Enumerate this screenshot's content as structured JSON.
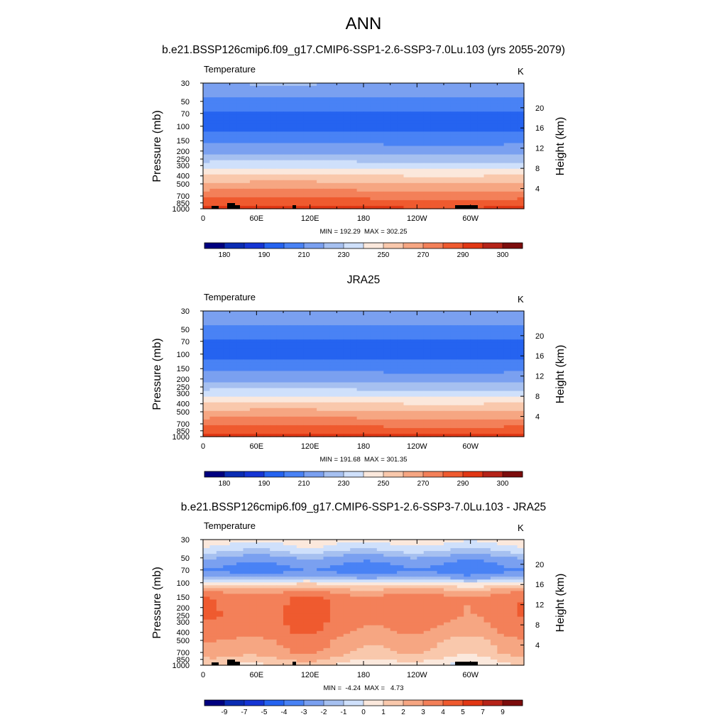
{
  "main_title": "ANN",
  "colors": {
    "full_field": [
      "#000080",
      "#0a2cb3",
      "#1535d4",
      "#2563f0",
      "#4982f5",
      "#7aa0f0",
      "#a6c0f0",
      "#cfe0fb",
      "#fbe8dc",
      "#f9c8ac",
      "#f6a682",
      "#f38059",
      "#ef5a2f",
      "#e13714",
      "#b52318",
      "#7c0c0c"
    ],
    "anomaly": [
      "#000080",
      "#0a2cb3",
      "#1535d4",
      "#2563f0",
      "#4982f5",
      "#7aa0f0",
      "#a6c0f0",
      "#cfe0fb",
      "#fbe8dc",
      "#f9c8ac",
      "#f6a682",
      "#f38059",
      "#ef5a2f",
      "#e13714",
      "#b52318",
      "#7c0c0c"
    ],
    "topography": "#000000"
  },
  "panels": [
    {
      "title": "b.e21.BSSP126cmip6.f09_g17.CMIP6-SSP1-2.6-SSP3-7.0Lu.103 (yrs 2055-2079)",
      "left_label": "Temperature",
      "right_label": "K",
      "minmax": "MIN = 192.29  MAX = 302.25",
      "colorbar_labels": [
        "180",
        "190",
        "210",
        "230",
        "250",
        "270",
        "290",
        "300"
      ]
    },
    {
      "title": "JRA25",
      "left_label": "Temperature",
      "right_label": "K",
      "minmax": "MIN = 191.68  MAX = 301.35",
      "colorbar_labels": [
        "180",
        "190",
        "210",
        "230",
        "250",
        "270",
        "290",
        "300"
      ]
    },
    {
      "title": "b.e21.BSSP126cmip6.f09_g17.CMIP6-SSP1-2.6-SSP3-7.0Lu.103 - JRA25",
      "left_label": "Temperature",
      "right_label": "K",
      "minmax": "MIN =  -4.24  MAX =   4.73",
      "colorbar_labels": [
        "-9",
        "-7",
        "-5",
        "-4",
        "-3",
        "-2",
        "-1",
        "0",
        "1",
        "2",
        "3",
        "4",
        "5",
        "7",
        "9"
      ]
    }
  ],
  "chart_data": [
    {
      "type": "heatmap",
      "title": "b.e21.BSSP126cmip6.f09_g17.CMIP6-SSP1-2.6-SSP3-7.0Lu.103 (yrs 2055-2079)",
      "variable": "Temperature",
      "units": "K",
      "xlabel": "",
      "ylabel": "Pressure (mb)",
      "ylabel_right": "Height (km)",
      "x_ticks": [
        "0",
        "60E",
        "120E",
        "180",
        "120W",
        "60W"
      ],
      "y_ticks": [
        "30",
        "50",
        "70",
        "100",
        "150",
        "200",
        "250",
        "300",
        "400",
        "500",
        "700",
        "850",
        "1000"
      ],
      "y_ticks_right": [
        "20",
        "16",
        "12",
        "8",
        "4"
      ],
      "y_scale": "log",
      "ylim": [
        1000,
        30
      ],
      "min": 192.29,
      "max": 302.25,
      "contour_levels": [
        180,
        185,
        190,
        200,
        210,
        220,
        230,
        240,
        250,
        260,
        270,
        280,
        290,
        295,
        300
      ],
      "profile": [
        {
          "p": 30,
          "T": 221
        },
        {
          "p": 50,
          "T": 207
        },
        {
          "p": 70,
          "T": 198
        },
        {
          "p": 100,
          "T": 196
        },
        {
          "p": 150,
          "T": 207
        },
        {
          "p": 200,
          "T": 216
        },
        {
          "p": 250,
          "T": 226
        },
        {
          "p": 300,
          "T": 236
        },
        {
          "p": 400,
          "T": 251
        },
        {
          "p": 500,
          "T": 262
        },
        {
          "p": 700,
          "T": 277
        },
        {
          "p": 850,
          "T": 285
        },
        {
          "p": 1000,
          "T": 293
        }
      ]
    },
    {
      "type": "heatmap",
      "title": "JRA25",
      "variable": "Temperature",
      "units": "K",
      "xlabel": "",
      "ylabel": "Pressure (mb)",
      "ylabel_right": "Height (km)",
      "x_ticks": [
        "0",
        "60E",
        "120E",
        "180",
        "120W",
        "60W"
      ],
      "y_ticks": [
        "30",
        "50",
        "70",
        "100",
        "150",
        "200",
        "250",
        "300",
        "400",
        "500",
        "700",
        "850",
        "1000"
      ],
      "y_ticks_right": [
        "20",
        "16",
        "12",
        "8",
        "4"
      ],
      "y_scale": "log",
      "ylim": [
        1000,
        30
      ],
      "min": 191.68,
      "max": 301.35,
      "contour_levels": [
        180,
        185,
        190,
        200,
        210,
        220,
        230,
        240,
        250,
        260,
        270,
        280,
        290,
        295,
        300
      ],
      "profile": [
        {
          "p": 30,
          "T": 220
        },
        {
          "p": 50,
          "T": 207
        },
        {
          "p": 70,
          "T": 198
        },
        {
          "p": 100,
          "T": 196
        },
        {
          "p": 150,
          "T": 207
        },
        {
          "p": 200,
          "T": 216
        },
        {
          "p": 250,
          "T": 226
        },
        {
          "p": 300,
          "T": 236
        },
        {
          "p": 400,
          "T": 251
        },
        {
          "p": 500,
          "T": 262
        },
        {
          "p": 700,
          "T": 277
        },
        {
          "p": 850,
          "T": 286
        },
        {
          "p": 1000,
          "T": 294
        }
      ]
    },
    {
      "type": "heatmap",
      "title": "b.e21.BSSP126cmip6.f09_g17.CMIP6-SSP1-2.6-SSP3-7.0Lu.103 - JRA25",
      "variable": "Temperature",
      "units": "K",
      "xlabel": "",
      "ylabel": "Pressure (mb)",
      "ylabel_right": "Height (km)",
      "x_ticks": [
        "0",
        "60E",
        "120E",
        "180",
        "120W",
        "60W"
      ],
      "y_ticks": [
        "30",
        "50",
        "70",
        "100",
        "150",
        "200",
        "250",
        "300",
        "400",
        "500",
        "700",
        "850",
        "1000"
      ],
      "y_ticks_right": [
        "20",
        "16",
        "12",
        "8",
        "4"
      ],
      "y_scale": "log",
      "ylim": [
        1000,
        30
      ],
      "min": -4.24,
      "max": 4.73,
      "contour_levels": [
        -9,
        -7,
        -5,
        -4,
        -3,
        -2,
        -1,
        0,
        1,
        2,
        3,
        4,
        5,
        7,
        9
      ],
      "profile": [
        {
          "p": 30,
          "T": 0.6
        },
        {
          "p": 40,
          "T": -0.8
        },
        {
          "p": 50,
          "T": -2.3
        },
        {
          "p": 70,
          "T": -3.5
        },
        {
          "p": 85,
          "T": -2.2
        },
        {
          "p": 100,
          "T": 0.2
        },
        {
          "p": 120,
          "T": 2.2
        },
        {
          "p": 150,
          "T": 3.6
        },
        {
          "p": 250,
          "T": 3.7
        },
        {
          "p": 400,
          "T": 3.2
        },
        {
          "p": 500,
          "T": 2.6
        },
        {
          "p": 700,
          "T": 2.2
        },
        {
          "p": 850,
          "T": 1.4
        },
        {
          "p": 1000,
          "T": 0.6
        }
      ]
    }
  ]
}
